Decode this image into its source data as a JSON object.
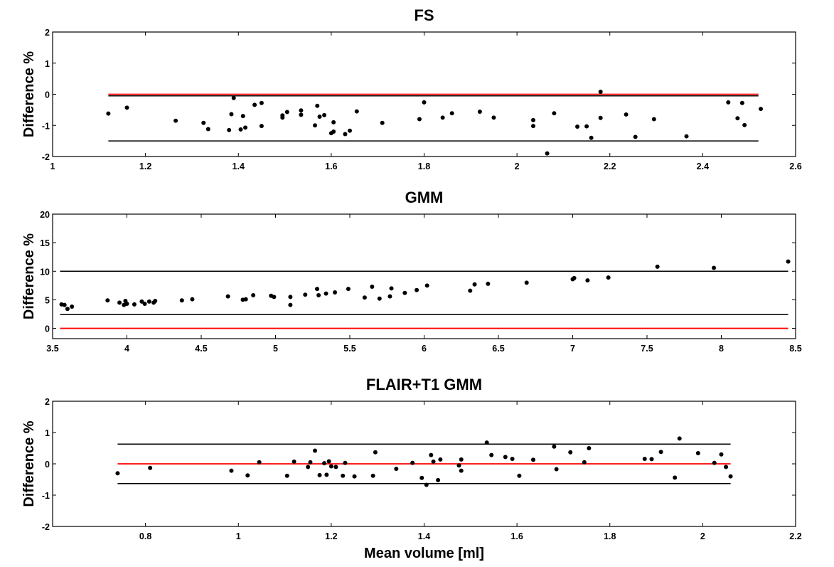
{
  "chart_data": [
    {
      "type": "scatter",
      "title": "FS",
      "xlabel": "",
      "ylabel": "Difference %",
      "xlim": [
        1,
        2.6
      ],
      "ylim": [
        -2,
        2
      ],
      "xticks": [
        "1",
        "1.2",
        "1.4",
        "1.6",
        "1.8",
        "2",
        "2.2",
        "2.4",
        "2.6"
      ],
      "yticks": [
        "-2",
        "-1",
        "0",
        "1",
        "2"
      ],
      "line_colors": {
        "zero": "#ff0000",
        "limits": "#000000"
      },
      "zero_line": 0,
      "mean_line": -0.05,
      "limit_lines": [
        -0.05,
        -1.5
      ],
      "line_range": [
        1.12,
        2.52
      ],
      "points": [
        [
          1.12,
          -0.62
        ],
        [
          1.16,
          -0.43
        ],
        [
          1.265,
          -0.85
        ],
        [
          1.325,
          -0.92
        ],
        [
          1.335,
          -1.12
        ],
        [
          1.38,
          -1.15
        ],
        [
          1.385,
          -0.64
        ],
        [
          1.39,
          -0.12
        ],
        [
          1.405,
          -1.13
        ],
        [
          1.41,
          -0.7
        ],
        [
          1.415,
          -1.07
        ],
        [
          1.435,
          -0.34
        ],
        [
          1.45,
          -0.28
        ],
        [
          1.45,
          -1.02
        ],
        [
          1.495,
          -0.75
        ],
        [
          1.495,
          -0.68
        ],
        [
          1.505,
          -0.57
        ],
        [
          1.535,
          -0.52
        ],
        [
          1.535,
          -0.66
        ],
        [
          1.565,
          -1.0
        ],
        [
          1.57,
          -0.37
        ],
        [
          1.575,
          -0.72
        ],
        [
          1.585,
          -0.67
        ],
        [
          1.6,
          -1.25
        ],
        [
          1.605,
          -1.2
        ],
        [
          1.605,
          -0.9
        ],
        [
          1.63,
          -1.28
        ],
        [
          1.64,
          -1.17
        ],
        [
          1.655,
          -0.55
        ],
        [
          1.71,
          -0.92
        ],
        [
          1.79,
          -0.8
        ],
        [
          1.8,
          -0.26
        ],
        [
          1.84,
          -0.75
        ],
        [
          1.86,
          -0.61
        ],
        [
          1.92,
          -0.56
        ],
        [
          1.95,
          -0.75
        ],
        [
          2.035,
          -0.83
        ],
        [
          2.035,
          -1.02
        ],
        [
          2.065,
          -1.9
        ],
        [
          2.08,
          -0.61
        ],
        [
          2.13,
          -1.04
        ],
        [
          2.15,
          -1.03
        ],
        [
          2.16,
          -1.4
        ],
        [
          2.18,
          0.08
        ],
        [
          2.18,
          -0.76
        ],
        [
          2.235,
          -0.65
        ],
        [
          2.255,
          -1.37
        ],
        [
          2.295,
          -0.8
        ],
        [
          2.365,
          -1.35
        ],
        [
          2.455,
          -0.26
        ],
        [
          2.475,
          -0.77
        ],
        [
          2.485,
          -0.28
        ],
        [
          2.49,
          -0.99
        ],
        [
          2.525,
          -0.47
        ]
      ]
    },
    {
      "type": "scatter",
      "title": "GMM",
      "xlabel": "",
      "ylabel": "Difference %",
      "xlim": [
        3.5,
        8.5
      ],
      "ylim": [
        -1.8,
        20
      ],
      "xticks": [
        "3.5",
        "4",
        "4.5",
        "5",
        "5.5",
        "6",
        "6.5",
        "7",
        "7.5",
        "8",
        "8.5"
      ],
      "yticks": [
        "0",
        "5",
        "10",
        "15",
        "20"
      ],
      "line_colors": {
        "zero": "#ff0000",
        "limits": "#000000"
      },
      "zero_line": 0,
      "limit_lines": [
        10.0,
        2.4
      ],
      "line_range": [
        3.55,
        8.45
      ],
      "points": [
        [
          3.56,
          4.2
        ],
        [
          3.58,
          4.1
        ],
        [
          3.6,
          3.4
        ],
        [
          3.63,
          3.8
        ],
        [
          3.87,
          4.9
        ],
        [
          3.95,
          4.5
        ],
        [
          3.98,
          4.1
        ],
        [
          3.99,
          4.8
        ],
        [
          4.0,
          4.3
        ],
        [
          4.05,
          4.2
        ],
        [
          4.1,
          4.7
        ],
        [
          4.12,
          4.3
        ],
        [
          4.15,
          4.7
        ],
        [
          4.18,
          4.5
        ],
        [
          4.19,
          4.8
        ],
        [
          4.37,
          4.9
        ],
        [
          4.44,
          5.1
        ],
        [
          4.68,
          5.6
        ],
        [
          4.78,
          5.0
        ],
        [
          4.8,
          5.1
        ],
        [
          4.85,
          5.8
        ],
        [
          4.97,
          5.7
        ],
        [
          4.99,
          5.5
        ],
        [
          5.1,
          5.5
        ],
        [
          5.1,
          4.1
        ],
        [
          5.2,
          5.9
        ],
        [
          5.28,
          6.9
        ],
        [
          5.29,
          5.8
        ],
        [
          5.34,
          6.1
        ],
        [
          5.4,
          6.3
        ],
        [
          5.49,
          6.9
        ],
        [
          5.6,
          5.4
        ],
        [
          5.65,
          7.3
        ],
        [
          5.7,
          5.2
        ],
        [
          5.77,
          5.6
        ],
        [
          5.78,
          7.0
        ],
        [
          5.87,
          6.2
        ],
        [
          5.95,
          6.7
        ],
        [
          6.02,
          7.5
        ],
        [
          6.31,
          6.6
        ],
        [
          6.34,
          7.7
        ],
        [
          6.43,
          7.8
        ],
        [
          6.69,
          8.0
        ],
        [
          7.0,
          8.6
        ],
        [
          7.01,
          8.8
        ],
        [
          7.1,
          8.4
        ],
        [
          7.24,
          8.9
        ],
        [
          7.57,
          10.8
        ],
        [
          7.95,
          10.6
        ],
        [
          8.45,
          11.7
        ]
      ]
    },
    {
      "type": "scatter",
      "title": "FLAIR+T1 GMM",
      "xlabel": "Mean volume [ml]",
      "ylabel": "Difference %",
      "xlim": [
        0.6,
        2.2
      ],
      "ylim": [
        -2,
        2
      ],
      "xticks": [
        "0.8",
        "1",
        "1.2",
        "1.4",
        "1.6",
        "1.8",
        "2",
        "2.2"
      ],
      "yticks": [
        "-2",
        "-1",
        "0",
        "1",
        "2"
      ],
      "line_colors": {
        "zero": "#ff0000",
        "limits": "#000000"
      },
      "zero_line": 0,
      "limit_lines": [
        0.63,
        -0.63
      ],
      "line_range": [
        0.74,
        2.06
      ],
      "points": [
        [
          0.74,
          -0.3
        ],
        [
          0.81,
          -0.13
        ],
        [
          0.985,
          -0.22
        ],
        [
          1.02,
          -0.37
        ],
        [
          1.045,
          0.05
        ],
        [
          1.105,
          -0.38
        ],
        [
          1.12,
          0.07
        ],
        [
          1.15,
          -0.1
        ],
        [
          1.155,
          0.05
        ],
        [
          1.165,
          0.42
        ],
        [
          1.175,
          -0.36
        ],
        [
          1.185,
          0.02
        ],
        [
          1.19,
          -0.35
        ],
        [
          1.195,
          0.08
        ],
        [
          1.2,
          -0.08
        ],
        [
          1.21,
          -0.1
        ],
        [
          1.225,
          -0.38
        ],
        [
          1.23,
          0.03
        ],
        [
          1.25,
          -0.4
        ],
        [
          1.29,
          -0.38
        ],
        [
          1.295,
          0.37
        ],
        [
          1.34,
          -0.16
        ],
        [
          1.375,
          0.03
        ],
        [
          1.395,
          -0.45
        ],
        [
          1.405,
          -0.67
        ],
        [
          1.415,
          0.28
        ],
        [
          1.42,
          0.07
        ],
        [
          1.43,
          -0.52
        ],
        [
          1.435,
          0.14
        ],
        [
          1.475,
          -0.05
        ],
        [
          1.48,
          0.14
        ],
        [
          1.48,
          -0.22
        ],
        [
          1.535,
          0.68
        ],
        [
          1.545,
          0.28
        ],
        [
          1.575,
          0.22
        ],
        [
          1.59,
          0.16
        ],
        [
          1.605,
          -0.38
        ],
        [
          1.635,
          0.13
        ],
        [
          1.68,
          0.55
        ],
        [
          1.685,
          -0.17
        ],
        [
          1.715,
          0.37
        ],
        [
          1.745,
          0.05
        ],
        [
          1.755,
          0.5
        ],
        [
          1.875,
          0.16
        ],
        [
          1.89,
          0.15
        ],
        [
          1.91,
          0.38
        ],
        [
          1.94,
          -0.44
        ],
        [
          1.95,
          0.81
        ],
        [
          1.99,
          0.34
        ],
        [
          2.025,
          0.03
        ],
        [
          2.04,
          0.3
        ],
        [
          2.05,
          -0.1
        ],
        [
          2.06,
          -0.4
        ]
      ]
    }
  ]
}
